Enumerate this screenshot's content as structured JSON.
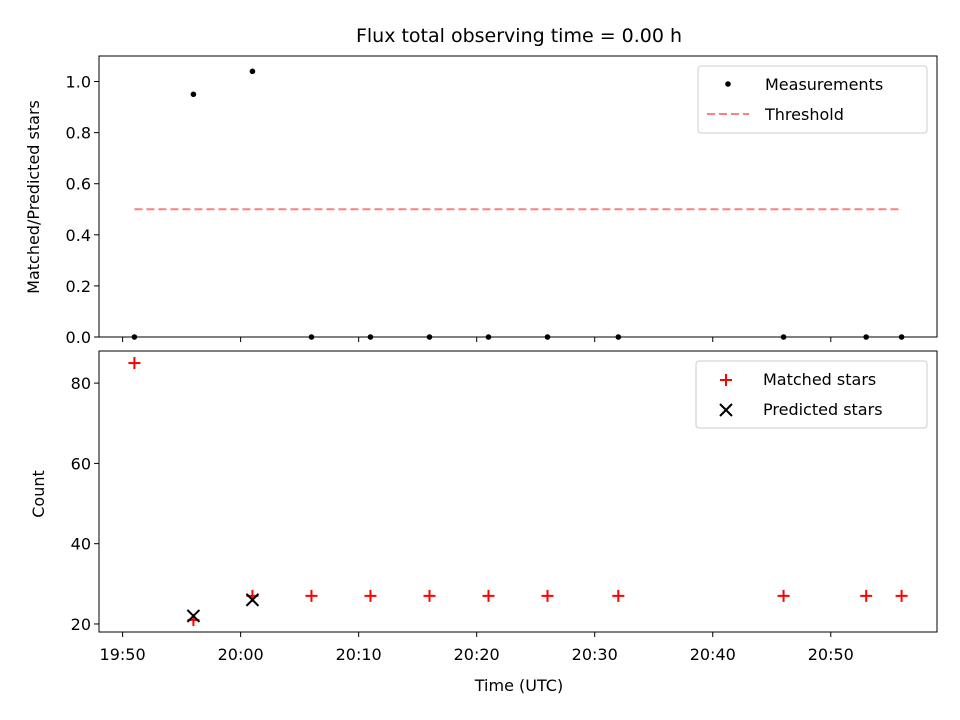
{
  "chart_data": [
    {
      "type": "scatter",
      "title": "Flux total observing time = 0.00 h",
      "xlabel": "",
      "ylabel": "Matched/Predicted stars",
      "xlim": [
        "19:48",
        "20:59"
      ],
      "ylim": [
        0,
        1.1
      ],
      "xticks": [
        "19:50",
        "20:00",
        "20:10",
        "20:20",
        "20:30",
        "20:40",
        "20:50"
      ],
      "yticks": [
        "0.0",
        "0.2",
        "0.4",
        "0.6",
        "0.8",
        "1.0"
      ],
      "legend_position": "top-right",
      "series": [
        {
          "name": "Measurements",
          "color": "#000000",
          "marker": "dot",
          "points": [
            [
              "19:51",
              0.0
            ],
            [
              "19:56",
              0.95
            ],
            [
              "20:01",
              1.04
            ],
            [
              "20:06",
              0.0
            ],
            [
              "20:11",
              0.0
            ],
            [
              "20:16",
              0.0
            ],
            [
              "20:21",
              0.0
            ],
            [
              "20:26",
              0.0
            ],
            [
              "20:32",
              0.0
            ],
            [
              "20:46",
              0.0
            ],
            [
              "20:53",
              0.0
            ],
            [
              "20:56",
              0.0
            ]
          ]
        },
        {
          "name": "Threshold",
          "color": "#ff7f7f",
          "marker": "dashed-line",
          "points": [
            [
              "19:51",
              0.5
            ],
            [
              "20:56",
              0.5
            ]
          ]
        }
      ]
    },
    {
      "type": "scatter",
      "title": "",
      "xlabel": "Time (UTC)",
      "ylabel": "Count",
      "xlim": [
        "19:48",
        "20:59"
      ],
      "ylim": [
        18,
        88
      ],
      "xticks": [
        "19:50",
        "20:00",
        "20:10",
        "20:20",
        "20:30",
        "20:40",
        "20:50"
      ],
      "yticks": [
        "20",
        "40",
        "60",
        "80"
      ],
      "legend_position": "top-right",
      "series": [
        {
          "name": "Matched stars",
          "color": "#ff0000",
          "marker": "plus",
          "points": [
            [
              "19:51",
              85
            ],
            [
              "19:56",
              21
            ],
            [
              "20:01",
              27
            ],
            [
              "20:06",
              27
            ],
            [
              "20:11",
              27
            ],
            [
              "20:16",
              27
            ],
            [
              "20:21",
              27
            ],
            [
              "20:26",
              27
            ],
            [
              "20:32",
              27
            ],
            [
              "20:46",
              27
            ],
            [
              "20:53",
              27
            ],
            [
              "20:56",
              27
            ]
          ]
        },
        {
          "name": "Predicted stars",
          "color": "#000000",
          "marker": "x",
          "points": [
            [
              "19:56",
              22
            ],
            [
              "20:01",
              26
            ]
          ]
        }
      ]
    }
  ]
}
